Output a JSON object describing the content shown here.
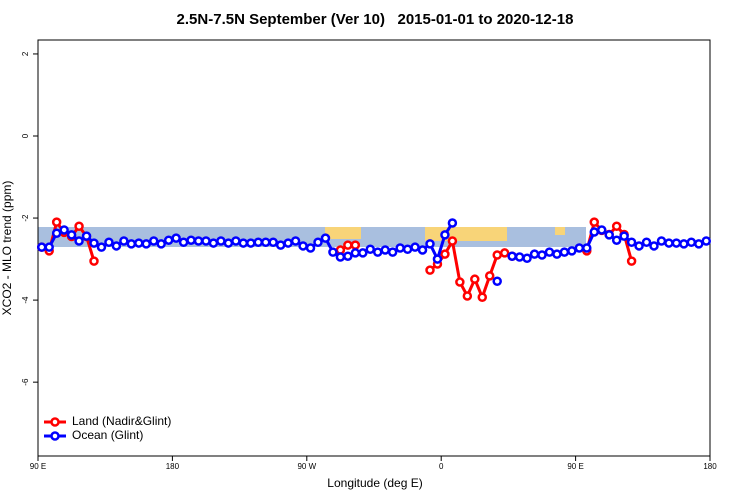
{
  "chart_data": {
    "type": "line",
    "title": "2.5N-7.5N September (Ver 10)   2015-01-01 to 2020-12-18",
    "x_label": "Longitude (deg E)",
    "y_label": "XCO2 - MLO trend (ppm)",
    "x": [
      92.5,
      97.5,
      102.5,
      107.5,
      112.5,
      117.5,
      122.5,
      127.5,
      132.5,
      137.5,
      142.5,
      147.5,
      152.5,
      157.5,
      162.5,
      167.5,
      172.5,
      177.5,
      182.5,
      187.5,
      192.5,
      197.5,
      202.5,
      207.5,
      212.5,
      217.5,
      222.5,
      227.5,
      232.5,
      237.5,
      242.5,
      247.5,
      252.5,
      257.5,
      262.5,
      267.5,
      272.5,
      277.5,
      282.5,
      287.5,
      292.5,
      297.5,
      302.5,
      307.5,
      312.5,
      317.5,
      322.5,
      327.5,
      332.5,
      337.5,
      342.5,
      347.5,
      352.5,
      357.5,
      362.5,
      367.5,
      372.5,
      377.5,
      382.5,
      387.5,
      392.5,
      397.5,
      402.5,
      407.5,
      412.5,
      417.5,
      422.5,
      427.5,
      432.5,
      437.5,
      442.5,
      447.5,
      452.5,
      457.5,
      462.5,
      467.5,
      472.5,
      477.5,
      482.5,
      487.5,
      492.5,
      497.5,
      502.5,
      507.5,
      512.5,
      517.5,
      522.5,
      527.5,
      532.5,
      537.5
    ],
    "series": [
      {
        "name": "Land (Nadir&Glint)",
        "color": "#ff0000",
        "values": [
          -2.71,
          -2.8,
          -2.1,
          -2.35,
          -2.45,
          -2.2,
          -2.45,
          -3.05,
          null,
          null,
          null,
          null,
          null,
          null,
          null,
          null,
          null,
          null,
          null,
          null,
          null,
          null,
          null,
          null,
          null,
          null,
          null,
          null,
          null,
          null,
          null,
          null,
          null,
          null,
          null,
          null,
          null,
          null,
          null,
          null,
          -2.78,
          -2.66,
          -2.66,
          null,
          null,
          null,
          null,
          null,
          null,
          null,
          null,
          null,
          -3.27,
          -3.12,
          -2.88,
          -2.56,
          -3.56,
          -3.9,
          -3.49,
          -3.93,
          -3.41,
          -2.9,
          -2.85,
          -2.93,
          null,
          null,
          null,
          null,
          null,
          null,
          null,
          null,
          null,
          -2.8,
          -2.1,
          -2.3,
          -2.4,
          -2.2,
          -2.4,
          -3.05,
          null,
          null,
          null,
          null,
          null,
          null,
          null,
          null,
          null,
          null
        ]
      },
      {
        "name": "Ocean (Glint)",
        "color": "#0000ff",
        "values": [
          -2.71,
          -2.71,
          -2.37,
          -2.29,
          -2.41,
          -2.56,
          -2.44,
          -2.61,
          -2.71,
          -2.59,
          -2.68,
          -2.56,
          -2.63,
          -2.61,
          -2.63,
          -2.56,
          -2.63,
          -2.54,
          -2.49,
          -2.59,
          -2.54,
          -2.56,
          -2.56,
          -2.61,
          -2.56,
          -2.61,
          -2.56,
          -2.61,
          -2.61,
          -2.59,
          -2.59,
          -2.59,
          -2.66,
          -2.61,
          -2.56,
          -2.68,
          -2.73,
          -2.59,
          -2.49,
          -2.83,
          -2.95,
          -2.93,
          -2.85,
          -2.85,
          -2.76,
          -2.83,
          -2.78,
          -2.83,
          -2.73,
          -2.76,
          -2.71,
          -2.78,
          -2.63,
          -3.0,
          -2.41,
          -2.12,
          null,
          null,
          null,
          null,
          null,
          -3.54,
          null,
          -2.93,
          -2.95,
          -2.98,
          -2.88,
          -2.9,
          -2.83,
          -2.88,
          -2.83,
          -2.8,
          -2.73,
          -2.73,
          -2.34,
          -2.29,
          -2.41,
          -2.54,
          -2.44,
          -2.59,
          -2.68,
          -2.59,
          -2.68,
          -2.56,
          -2.61,
          -2.61,
          -2.63,
          -2.59,
          -2.63,
          -2.56
        ]
      }
    ],
    "xlim": [
      90,
      540
    ],
    "xticks": [
      {
        "value": 90,
        "label": "90 E"
      },
      {
        "value": 180,
        "label": "180"
      },
      {
        "value": 270,
        "label": "90 W"
      },
      {
        "value": 360,
        "label": "0"
      },
      {
        "value": 450,
        "label": "90 E"
      },
      {
        "value": 540,
        "label": "180"
      }
    ],
    "ylim": [
      -7.8,
      2.34
    ],
    "yticks": [
      -6,
      -4,
      -2,
      0,
      2
    ],
    "legend": "bottom-left"
  }
}
